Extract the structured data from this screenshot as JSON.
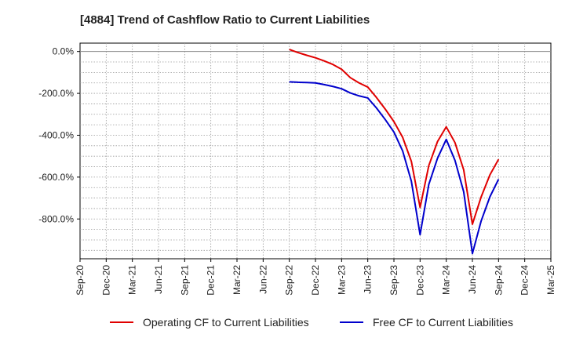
{
  "chart_data": {
    "type": "line",
    "title": "[4884]  Trend of Cashflow Ratio to Current Liabilities",
    "xlabel": "",
    "ylabel": "",
    "x_tick_labels": [
      "Sep-20",
      "Dec-20",
      "Mar-21",
      "Jun-21",
      "Sep-21",
      "Dec-21",
      "Mar-22",
      "Jun-22",
      "Sep-22",
      "Dec-22",
      "Mar-23",
      "Jun-23",
      "Sep-23",
      "Dec-23",
      "Mar-24",
      "Jun-24",
      "Sep-24",
      "Dec-24",
      "Mar-25"
    ],
    "y_ticks": [
      0,
      -200,
      -400,
      -600,
      -800
    ],
    "y_tick_labels": [
      "0.0%",
      "-200.0%",
      "-400.0%",
      "-600.0%",
      "-800.0%"
    ],
    "ylim": [
      -990,
      40
    ],
    "grid": true,
    "legend_position": "bottom",
    "series": [
      {
        "name": "Operating CF to Current Liabilities",
        "color": "#e00000",
        "points": [
          [
            "Sep-22",
            10
          ],
          [
            "Oct-22",
            -5
          ],
          [
            "Nov-22",
            -18
          ],
          [
            "Dec-22",
            -30
          ],
          [
            "Jan-23",
            -45
          ],
          [
            "Feb-23",
            -62
          ],
          [
            "Mar-23",
            -85
          ],
          [
            "Apr-23",
            -125
          ],
          [
            "May-23",
            -150
          ],
          [
            "Jun-23",
            -170
          ],
          [
            "Jul-23",
            -220
          ],
          [
            "Aug-23",
            -275
          ],
          [
            "Sep-23",
            -335
          ],
          [
            "Oct-23",
            -410
          ],
          [
            "Nov-23",
            -525
          ],
          [
            "Dec-23",
            -745
          ],
          [
            "Jan-24",
            -545
          ],
          [
            "Feb-24",
            -430
          ],
          [
            "Mar-24",
            -360
          ],
          [
            "Apr-24",
            -435
          ],
          [
            "May-24",
            -565
          ],
          [
            "Jun-24",
            -825
          ],
          [
            "Jul-24",
            -695
          ],
          [
            "Aug-24",
            -590
          ],
          [
            "Sep-24",
            -515
          ]
        ]
      },
      {
        "name": "Free CF to Current Liabilities",
        "color": "#0000cc",
        "points": [
          [
            "Sep-22",
            -145
          ],
          [
            "Oct-22",
            -147
          ],
          [
            "Nov-22",
            -148
          ],
          [
            "Dec-22",
            -150
          ],
          [
            "Jan-23",
            -158
          ],
          [
            "Feb-23",
            -167
          ],
          [
            "Mar-23",
            -178
          ],
          [
            "Apr-23",
            -198
          ],
          [
            "May-23",
            -212
          ],
          [
            "Jun-23",
            -222
          ],
          [
            "Jul-23",
            -270
          ],
          [
            "Aug-23",
            -325
          ],
          [
            "Sep-23",
            -385
          ],
          [
            "Oct-23",
            -475
          ],
          [
            "Nov-23",
            -620
          ],
          [
            "Dec-23",
            -875
          ],
          [
            "Jan-24",
            -635
          ],
          [
            "Feb-24",
            -510
          ],
          [
            "Mar-24",
            -420
          ],
          [
            "Apr-24",
            -520
          ],
          [
            "May-24",
            -670
          ],
          [
            "Jun-24",
            -965
          ],
          [
            "Jul-24",
            -810
          ],
          [
            "Aug-24",
            -695
          ],
          [
            "Sep-24",
            -610
          ]
        ]
      }
    ]
  }
}
